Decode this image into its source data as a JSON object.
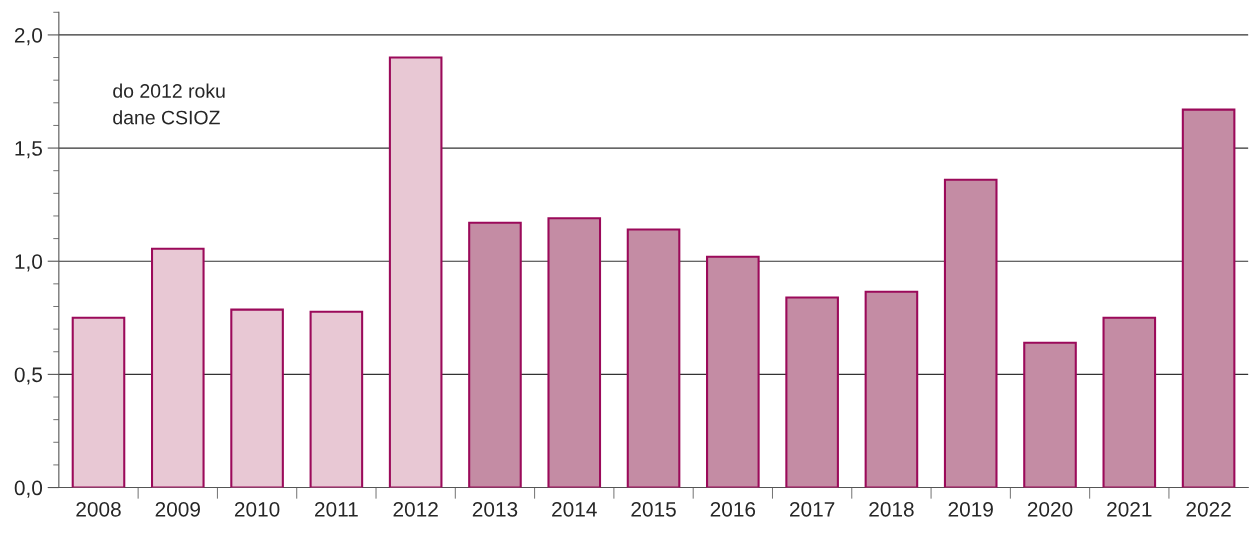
{
  "chart_data": {
    "type": "bar",
    "categories": [
      "2008",
      "2009",
      "2010",
      "2011",
      "2012",
      "2013",
      "2014",
      "2015",
      "2016",
      "2017",
      "2018",
      "2019",
      "2020",
      "2021",
      "2022"
    ],
    "values": [
      0.75,
      1.055,
      0.786,
      0.777,
      1.9,
      1.17,
      1.19,
      1.14,
      1.02,
      0.84,
      0.865,
      1.36,
      0.64,
      0.75,
      1.67
    ],
    "colors": [
      "#e8c8d4",
      "#e8c8d4",
      "#e8c8d4",
      "#e8c8d4",
      "#e8c8d4",
      "#c48ca4",
      "#c48ca4",
      "#c48ca4",
      "#c48ca4",
      "#c48ca4",
      "#c48ca4",
      "#c48ca4",
      "#c48ca4",
      "#c48ca4",
      "#c48ca4"
    ],
    "ylim": [
      0,
      2.1
    ],
    "yticks": [
      {
        "value": 0,
        "label": "0,0"
      },
      {
        "value": 0.1,
        "label": null
      },
      {
        "value": 0.2,
        "label": null
      },
      {
        "value": 0.3,
        "label": null
      },
      {
        "value": 0.4,
        "label": null
      },
      {
        "value": 0.5,
        "label": "0,5"
      },
      {
        "value": 0.6,
        "label": null
      },
      {
        "value": 0.7,
        "label": null
      },
      {
        "value": 0.8,
        "label": null
      },
      {
        "value": 0.9,
        "label": null
      },
      {
        "value": 1.0,
        "label": "1,0"
      },
      {
        "value": 1.1,
        "label": null
      },
      {
        "value": 1.2,
        "label": null
      },
      {
        "value": 1.3,
        "label": null
      },
      {
        "value": 1.4,
        "label": null
      },
      {
        "value": 1.5,
        "label": "1,5"
      },
      {
        "value": 1.6,
        "label": null
      },
      {
        "value": 1.7,
        "label": null
      },
      {
        "value": 1.8,
        "label": null
      },
      {
        "value": 1.9,
        "label": null
      },
      {
        "value": 2.0,
        "label": "2,0"
      },
      {
        "value": 2.1,
        "label": null
      }
    ],
    "grid": "y",
    "annotations": [
      "do 2012 roku\ndane CSIOZ"
    ]
  }
}
